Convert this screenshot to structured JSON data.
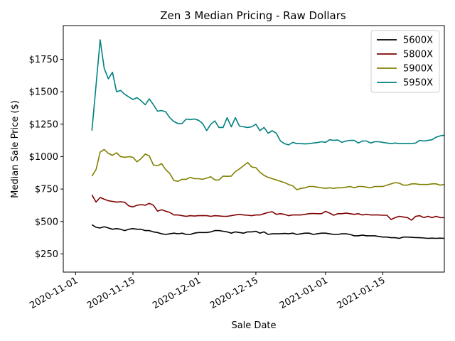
{
  "chart_data": {
    "type": "line",
    "title": "Zen 3 Median Pricing - Raw Dollars",
    "xlabel": "Sale Date",
    "ylabel": "Median Sale Price ($)",
    "x_range": [
      "2020-10-29",
      "2021-01-30"
    ],
    "ylim": [
      110,
      2010
    ],
    "x_ticks": [
      {
        "date": "2020-11-01",
        "label": "2020-11-01"
      },
      {
        "date": "2020-11-15",
        "label": "2020-11-15"
      },
      {
        "date": "2020-12-01",
        "label": "2020-12-01"
      },
      {
        "date": "2020-12-15",
        "label": "2020-12-15"
      },
      {
        "date": "2021-01-01",
        "label": "2021-01-01"
      },
      {
        "date": "2021-01-15",
        "label": "2021-01-15"
      }
    ],
    "y_ticks": [
      {
        "value": 250,
        "label": "$250"
      },
      {
        "value": 500,
        "label": "$500"
      },
      {
        "value": 750,
        "label": "$750"
      },
      {
        "value": 1000,
        "label": "$1000"
      },
      {
        "value": 1250,
        "label": "$1250"
      },
      {
        "value": 1500,
        "label": "$1500"
      },
      {
        "value": 1750,
        "label": "$1750"
      }
    ],
    "grid": false,
    "legend_position": "top-right",
    "x_start": "2020-11-05",
    "series": [
      {
        "name": "5600X",
        "color": "#000000",
        "values": [
          475,
          455,
          450,
          460,
          450,
          440,
          445,
          440,
          430,
          440,
          445,
          440,
          440,
          430,
          430,
          420,
          415,
          405,
          400,
          405,
          410,
          405,
          410,
          400,
          400,
          410,
          415,
          415,
          415,
          420,
          430,
          430,
          425,
          420,
          410,
          420,
          415,
          410,
          420,
          420,
          425,
          410,
          420,
          400,
          405,
          405,
          405,
          408,
          405,
          410,
          400,
          405,
          410,
          410,
          400,
          405,
          410,
          410,
          405,
          400,
          400,
          405,
          405,
          400,
          390,
          390,
          395,
          390,
          390,
          390,
          385,
          380,
          380,
          375,
          375,
          370,
          380,
          380,
          378,
          376,
          375,
          373,
          370,
          372,
          370,
          372,
          370
        ]
      },
      {
        "name": "5800X",
        "color": "#800000",
        "values": [
          705,
          650,
          685,
          672,
          660,
          655,
          650,
          652,
          648,
          620,
          612,
          625,
          630,
          625,
          640,
          625,
          580,
          590,
          580,
          570,
          550,
          550,
          545,
          540,
          545,
          542,
          545,
          546,
          545,
          540,
          545,
          543,
          540,
          540,
          545,
          550,
          555,
          550,
          548,
          545,
          550,
          550,
          560,
          570,
          575,
          555,
          560,
          555,
          545,
          550,
          550,
          550,
          555,
          560,
          562,
          560,
          560,
          578,
          565,
          548,
          560,
          560,
          565,
          560,
          555,
          560,
          550,
          555,
          550,
          550,
          550,
          548,
          548,
          515,
          530,
          540,
          535,
          530,
          510,
          540,
          545,
          530,
          540,
          530,
          540,
          530,
          530
        ]
      },
      {
        "name": "5900X",
        "color": "#808000",
        "values": [
          850,
          900,
          1035,
          1055,
          1025,
          1010,
          1030,
          1000,
          995,
          1000,
          995,
          960,
          985,
          1020,
          1005,
          935,
          930,
          945,
          900,
          870,
          815,
          810,
          825,
          825,
          840,
          830,
          830,
          825,
          835,
          845,
          820,
          820,
          850,
          848,
          850,
          885,
          905,
          930,
          955,
          920,
          915,
          880,
          855,
          840,
          830,
          820,
          810,
          800,
          785,
          775,
          745,
          755,
          760,
          770,
          770,
          765,
          760,
          755,
          760,
          755,
          760,
          760,
          765,
          770,
          760,
          770,
          770,
          765,
          760,
          770,
          770,
          770,
          780,
          790,
          800,
          795,
          780,
          780,
          790,
          790,
          785,
          785,
          785,
          790,
          790,
          780,
          785
        ]
      },
      {
        "name": "5950X",
        "color": "#008080",
        "values": [
          1200,
          1550,
          1900,
          1680,
          1600,
          1650,
          1500,
          1510,
          1480,
          1460,
          1440,
          1455,
          1430,
          1400,
          1445,
          1400,
          1350,
          1355,
          1345,
          1300,
          1270,
          1255,
          1255,
          1290,
          1285,
          1290,
          1280,
          1255,
          1200,
          1250,
          1275,
          1225,
          1225,
          1300,
          1230,
          1300,
          1235,
          1230,
          1225,
          1230,
          1250,
          1200,
          1225,
          1180,
          1200,
          1180,
          1120,
          1100,
          1090,
          1110,
          1100,
          1100,
          1098,
          1100,
          1105,
          1108,
          1115,
          1110,
          1130,
          1125,
          1128,
          1110,
          1120,
          1125,
          1125,
          1105,
          1120,
          1120,
          1105,
          1115,
          1115,
          1110,
          1105,
          1100,
          1105,
          1100,
          1100,
          1100,
          1100,
          1105,
          1125,
          1120,
          1125,
          1130,
          1150,
          1160,
          1165
        ]
      }
    ]
  }
}
